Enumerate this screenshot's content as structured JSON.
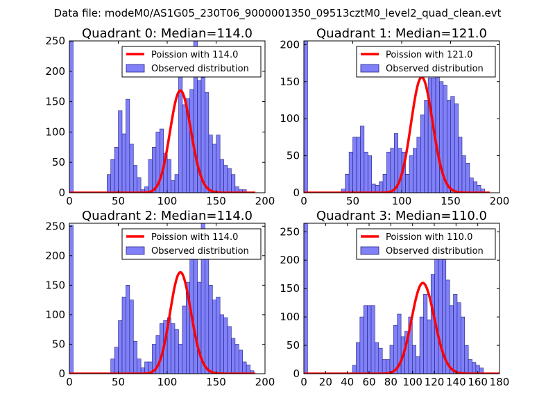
{
  "figure": {
    "suptitle": "Data file: modeM0/AS1G05_230T06_9000001350_09513cztM0_level2_quad_clean.evt",
    "colors": {
      "bar_fill": "#8080f8",
      "bar_edge": "#202080",
      "poisson_line": "#ff0000"
    }
  },
  "chart_data": [
    {
      "type": "bar",
      "title": "Quadrant 0: Median=114.0",
      "median": 114.0,
      "xlim": [
        0,
        200
      ],
      "ylim": [
        0,
        250
      ],
      "xticks": [
        0,
        50,
        100,
        150,
        200
      ],
      "yticks": [
        0,
        50,
        100,
        150,
        200,
        250
      ],
      "xtick_labels": [
        "0",
        "50",
        "100",
        "150",
        "200"
      ],
      "ytick_labels": [
        "0",
        "50",
        "100",
        "150",
        "200",
        "250"
      ],
      "bin_width": 3.85,
      "bin_start": 0,
      "values": [
        249,
        0,
        0,
        0,
        0,
        0,
        0,
        0,
        0,
        0,
        30,
        55,
        75,
        135,
        97,
        154,
        80,
        45,
        25,
        5,
        10,
        55,
        75,
        100,
        105,
        65,
        55,
        20,
        30,
        200,
        145,
        155,
        170,
        255,
        185,
        190,
        165,
        95,
        80,
        95,
        55,
        45,
        40,
        30,
        10,
        5,
        5,
        0,
        0,
        0
      ],
      "legend": [
        {
          "label": "Poission with 114.0",
          "kind": "line"
        },
        {
          "label": "Observed distribution",
          "kind": "patch"
        }
      ],
      "poisson": {
        "mu": 114.0,
        "scale": 4500,
        "x_range": [
          0,
          190
        ]
      }
    },
    {
      "type": "bar",
      "title": "Quadrant 1: Median=121.0",
      "median": 121.0,
      "xlim": [
        0,
        200
      ],
      "ylim": [
        0,
        205
      ],
      "xticks": [
        0,
        50,
        100,
        150,
        200
      ],
      "yticks": [
        0,
        50,
        100,
        150,
        200
      ],
      "xtick_labels": [
        "0",
        "50",
        "100",
        "150",
        "200"
      ],
      "ytick_labels": [
        "0",
        "50",
        "100",
        "150",
        "200"
      ],
      "bin_width": 3.85,
      "bin_start": 0,
      "values": [
        205,
        0,
        0,
        0,
        0,
        0,
        0,
        0,
        0,
        0,
        5,
        25,
        55,
        75,
        75,
        90,
        55,
        50,
        12,
        10,
        15,
        25,
        55,
        60,
        80,
        60,
        55,
        25,
        50,
        60,
        75,
        105,
        125,
        155,
        155,
        195,
        150,
        145,
        125,
        130,
        120,
        75,
        50,
        40,
        20,
        15,
        10,
        5,
        0,
        0
      ],
      "legend": [
        {
          "label": "Poission with 121.0",
          "kind": "line"
        },
        {
          "label": "Observed distribution",
          "kind": "patch"
        }
      ],
      "poisson": {
        "mu": 121.0,
        "scale": 4300,
        "x_range": [
          0,
          190
        ]
      }
    },
    {
      "type": "bar",
      "title": "Quadrant 2: Median=114.0",
      "median": 114.0,
      "xlim": [
        0,
        200
      ],
      "ylim": [
        0,
        255
      ],
      "xticks": [
        0,
        50,
        100,
        150,
        200
      ],
      "yticks": [
        0,
        50,
        100,
        150,
        200,
        250
      ],
      "xtick_labels": [
        "0",
        "50",
        "100",
        "150",
        "200"
      ],
      "ytick_labels": [
        "0",
        "50",
        "100",
        "150",
        "200",
        "250"
      ],
      "bin_width": 3.85,
      "bin_start": 0,
      "values": [
        252,
        0,
        0,
        0,
        0,
        0,
        0,
        0,
        0,
        0,
        0,
        25,
        45,
        90,
        130,
        150,
        125,
        55,
        25,
        10,
        20,
        20,
        50,
        65,
        85,
        90,
        95,
        85,
        75,
        50,
        115,
        155,
        205,
        210,
        155,
        255,
        215,
        150,
        125,
        130,
        100,
        95,
        80,
        60,
        50,
        40,
        20,
        15,
        5,
        0
      ],
      "legend": [
        {
          "label": "Poission with 114.0",
          "kind": "line"
        },
        {
          "label": "Observed distribution",
          "kind": "patch"
        }
      ],
      "poisson": {
        "mu": 114.0,
        "scale": 4600,
        "x_range": [
          0,
          190
        ]
      }
    },
    {
      "type": "bar",
      "title": "Quadrant 3: Median=110.0",
      "median": 110.0,
      "xlim": [
        0,
        180
      ],
      "ylim": [
        0,
        265
      ],
      "xticks": [
        0,
        20,
        40,
        60,
        80,
        100,
        120,
        140,
        160,
        180
      ],
      "yticks": [
        0,
        50,
        100,
        150,
        200,
        250
      ],
      "xtick_labels": [
        "0",
        "20",
        "40",
        "60",
        "80",
        "100",
        "120",
        "140",
        "160",
        "180"
      ],
      "ytick_labels": [
        "0",
        "50",
        "100",
        "150",
        "200",
        "250"
      ],
      "bin_width": 3.44,
      "bin_start": 0,
      "values": [
        265,
        0,
        0,
        0,
        0,
        0,
        0,
        0,
        0,
        0,
        0,
        0,
        0,
        15,
        55,
        100,
        120,
        120,
        120,
        55,
        45,
        25,
        25,
        50,
        85,
        105,
        65,
        75,
        100,
        50,
        30,
        100,
        140,
        95,
        175,
        220,
        250,
        215,
        165,
        120,
        140,
        125,
        100,
        50,
        25,
        20,
        15,
        10,
        0,
        0
      ],
      "legend": [
        {
          "label": "Poission with 110.0",
          "kind": "line"
        },
        {
          "label": "Observed distribution",
          "kind": "patch"
        }
      ],
      "poisson": {
        "mu": 110.0,
        "scale": 4200,
        "x_range": [
          0,
          180
        ]
      }
    }
  ]
}
